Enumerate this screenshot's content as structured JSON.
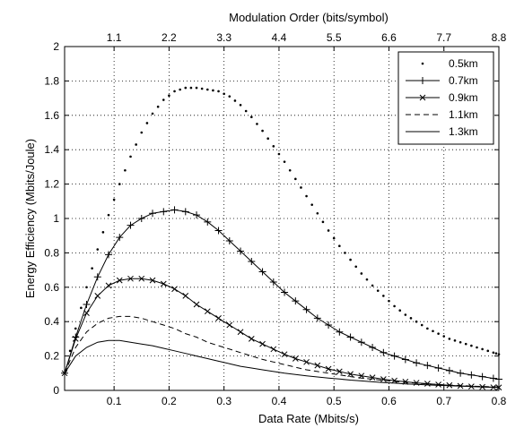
{
  "chart_data": {
    "type": "line",
    "xlabel": "Data Rate (Mbits/s)",
    "ylabel": "Energy Efficiency (Mbits/Joule)",
    "x2label": "Modulation Order (bits/symbol)",
    "xlim": [
      0.01,
      0.8
    ],
    "ylim": [
      0,
      2
    ],
    "x_ticks": [
      0.1,
      0.2,
      0.3,
      0.4,
      0.5,
      0.6,
      0.7,
      0.8
    ],
    "x_tick_labels": [
      "0.1",
      "0.2",
      "0.3",
      "0.4",
      "0.5",
      "0.6",
      "0.7",
      "0.8"
    ],
    "y_ticks": [
      0,
      0.2,
      0.4,
      0.6,
      0.8,
      1,
      1.2,
      1.4,
      1.6,
      1.8,
      2
    ],
    "y_tick_labels": [
      "0",
      "0.2",
      "0.4",
      "0.6",
      "0.8",
      "1",
      "1.2",
      "1.4",
      "1.6",
      "1.8",
      "2"
    ],
    "x2_tick_labels": [
      "1.1",
      "2.2",
      "3.3",
      "4.4",
      "5.5",
      "6.6",
      "7.7",
      "8.8"
    ],
    "grid": true,
    "legend_position": "top-right",
    "series": [
      {
        "name": "0.5km",
        "style": "dotted",
        "x": [
          0.01,
          0.03,
          0.05,
          0.07,
          0.09,
          0.11,
          0.13,
          0.15,
          0.17,
          0.19,
          0.21,
          0.23,
          0.25,
          0.27,
          0.29,
          0.31,
          0.33,
          0.35,
          0.37,
          0.39,
          0.41,
          0.43,
          0.45,
          0.47,
          0.49,
          0.51,
          0.53,
          0.55,
          0.57,
          0.59,
          0.61,
          0.63,
          0.65,
          0.67,
          0.69,
          0.71,
          0.73,
          0.75,
          0.77,
          0.79,
          0.8
        ],
        "y": [
          0.1,
          0.36,
          0.6,
          0.82,
          1.02,
          1.2,
          1.36,
          1.5,
          1.61,
          1.69,
          1.74,
          1.76,
          1.76,
          1.75,
          1.74,
          1.71,
          1.66,
          1.59,
          1.51,
          1.42,
          1.33,
          1.23,
          1.13,
          1.03,
          0.93,
          0.84,
          0.76,
          0.68,
          0.61,
          0.55,
          0.49,
          0.44,
          0.4,
          0.36,
          0.33,
          0.3,
          0.28,
          0.26,
          0.24,
          0.22,
          0.21
        ]
      },
      {
        "name": "0.7km",
        "style": "solid-plus",
        "x": [
          0.01,
          0.03,
          0.05,
          0.07,
          0.09,
          0.11,
          0.13,
          0.15,
          0.17,
          0.19,
          0.21,
          0.23,
          0.25,
          0.27,
          0.29,
          0.31,
          0.33,
          0.35,
          0.37,
          0.39,
          0.41,
          0.43,
          0.45,
          0.47,
          0.49,
          0.51,
          0.53,
          0.55,
          0.57,
          0.59,
          0.61,
          0.63,
          0.65,
          0.67,
          0.69,
          0.71,
          0.73,
          0.75,
          0.77,
          0.79,
          0.8
        ],
        "y": [
          0.1,
          0.31,
          0.5,
          0.66,
          0.79,
          0.89,
          0.96,
          1.0,
          1.03,
          1.04,
          1.05,
          1.04,
          1.02,
          0.98,
          0.93,
          0.87,
          0.81,
          0.75,
          0.69,
          0.63,
          0.57,
          0.52,
          0.47,
          0.42,
          0.38,
          0.34,
          0.31,
          0.28,
          0.25,
          0.22,
          0.2,
          0.18,
          0.16,
          0.145,
          0.13,
          0.115,
          0.1,
          0.09,
          0.08,
          0.07,
          0.065
        ]
      },
      {
        "name": "0.9km",
        "style": "solid-x",
        "x": [
          0.01,
          0.03,
          0.05,
          0.07,
          0.09,
          0.11,
          0.13,
          0.15,
          0.17,
          0.19,
          0.21,
          0.23,
          0.25,
          0.27,
          0.29,
          0.31,
          0.33,
          0.35,
          0.37,
          0.39,
          0.41,
          0.43,
          0.45,
          0.47,
          0.49,
          0.51,
          0.53,
          0.55,
          0.57,
          0.59,
          0.61,
          0.63,
          0.65,
          0.67,
          0.69,
          0.71,
          0.73,
          0.75,
          0.77,
          0.79,
          0.8
        ],
        "y": [
          0.1,
          0.3,
          0.45,
          0.55,
          0.61,
          0.64,
          0.65,
          0.65,
          0.64,
          0.62,
          0.59,
          0.55,
          0.5,
          0.46,
          0.42,
          0.38,
          0.34,
          0.3,
          0.27,
          0.24,
          0.21,
          0.185,
          0.165,
          0.145,
          0.125,
          0.11,
          0.095,
          0.085,
          0.075,
          0.065,
          0.057,
          0.05,
          0.044,
          0.039,
          0.034,
          0.03,
          0.026,
          0.023,
          0.02,
          0.018,
          0.017
        ]
      },
      {
        "name": "1.1km",
        "style": "dashed",
        "x": [
          0.01,
          0.03,
          0.05,
          0.07,
          0.09,
          0.11,
          0.13,
          0.15,
          0.17,
          0.19,
          0.21,
          0.23,
          0.25,
          0.27,
          0.29,
          0.31,
          0.33,
          0.35,
          0.37,
          0.39,
          0.41,
          0.43,
          0.45,
          0.47,
          0.49,
          0.51,
          0.53,
          0.55,
          0.57,
          0.59,
          0.61,
          0.63,
          0.65,
          0.67,
          0.69,
          0.71,
          0.73,
          0.75,
          0.77,
          0.79,
          0.8
        ],
        "y": [
          0.1,
          0.25,
          0.34,
          0.39,
          0.42,
          0.43,
          0.43,
          0.42,
          0.4,
          0.38,
          0.36,
          0.33,
          0.31,
          0.28,
          0.26,
          0.24,
          0.22,
          0.2,
          0.18,
          0.165,
          0.15,
          0.135,
          0.12,
          0.11,
          0.1,
          0.09,
          0.08,
          0.072,
          0.065,
          0.058,
          0.052,
          0.047,
          0.042,
          0.038,
          0.034,
          0.031,
          0.028,
          0.025,
          0.023,
          0.021,
          0.02
        ]
      },
      {
        "name": "1.3km",
        "style": "solid",
        "x": [
          0.01,
          0.03,
          0.05,
          0.07,
          0.09,
          0.11,
          0.13,
          0.15,
          0.17,
          0.19,
          0.21,
          0.23,
          0.25,
          0.27,
          0.29,
          0.31,
          0.33,
          0.35,
          0.37,
          0.39,
          0.41,
          0.43,
          0.45,
          0.47,
          0.49,
          0.51,
          0.53,
          0.55,
          0.57,
          0.59,
          0.61,
          0.63,
          0.65,
          0.67,
          0.69,
          0.71,
          0.73,
          0.75,
          0.77,
          0.79,
          0.8
        ],
        "y": [
          0.1,
          0.2,
          0.25,
          0.28,
          0.29,
          0.29,
          0.28,
          0.27,
          0.26,
          0.245,
          0.23,
          0.215,
          0.2,
          0.185,
          0.17,
          0.155,
          0.14,
          0.13,
          0.12,
          0.11,
          0.1,
          0.092,
          0.085,
          0.078,
          0.072,
          0.066,
          0.06,
          0.055,
          0.05,
          0.046,
          0.042,
          0.038,
          0.035,
          0.032,
          0.029,
          0.027,
          0.025,
          0.023,
          0.021,
          0.019,
          0.018
        ]
      }
    ]
  }
}
